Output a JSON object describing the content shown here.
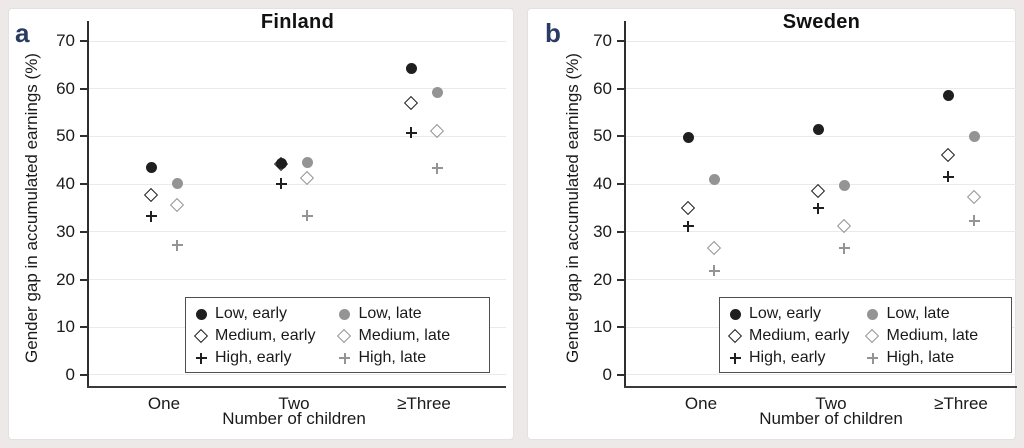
{
  "colors": {
    "early": "#1f1f1f",
    "late": "#949494",
    "panel_label": "#2a3c64",
    "grid": "#eaeaea",
    "axis": "#2e2e2e"
  },
  "legend": {
    "items": [
      {
        "label": "Low, early",
        "marker": "circle",
        "tone": "early"
      },
      {
        "label": "Low, late",
        "marker": "circle",
        "tone": "late"
      },
      {
        "label": "Medium, early",
        "marker": "diamond",
        "tone": "early"
      },
      {
        "label": "Medium, late",
        "marker": "diamond",
        "tone": "late"
      },
      {
        "label": "High, early",
        "marker": "plus",
        "tone": "early"
      },
      {
        "label": "High, late",
        "marker": "plus",
        "tone": "late"
      }
    ]
  },
  "chart_data": [
    {
      "panel_label": "a",
      "title": "Finland",
      "type": "scatter",
      "ylabel": "Gender gap in accumulated earnings (%)",
      "xlabel": "Number of children",
      "ylim": [
        0,
        70
      ],
      "yticks": [
        0,
        10,
        20,
        30,
        40,
        50,
        60,
        70
      ],
      "grid": true,
      "legend_position": "bottom-right",
      "categories": [
        "One",
        "Two",
        "≥Three"
      ],
      "series": [
        {
          "name": "Low, early",
          "marker": "circle",
          "tone": "early",
          "values": [
            43.5,
            44.4,
            64.2
          ]
        },
        {
          "name": "Medium, early",
          "marker": "diamond",
          "tone": "early",
          "values": [
            37.7,
            44.1,
            56.9
          ]
        },
        {
          "name": "High, early",
          "marker": "plus",
          "tone": "early",
          "values": [
            33.3,
            40.1,
            50.8
          ]
        },
        {
          "name": "Low, late",
          "marker": "circle",
          "tone": "late",
          "values": [
            40.1,
            44.6,
            59.2
          ]
        },
        {
          "name": "Medium, late",
          "marker": "diamond",
          "tone": "late",
          "values": [
            35.5,
            41.2,
            51.0
          ]
        },
        {
          "name": "High, late",
          "marker": "plus",
          "tone": "late",
          "values": [
            27.2,
            33.4,
            43.3
          ]
        }
      ]
    },
    {
      "panel_label": "b",
      "title": "Sweden",
      "type": "scatter",
      "ylabel": "Gender gap in accumulated earnings (%)",
      "xlabel": "Number of children",
      "ylim": [
        0,
        70
      ],
      "yticks": [
        0,
        10,
        20,
        30,
        40,
        50,
        60,
        70
      ],
      "grid": true,
      "legend_position": "bottom-right",
      "categories": [
        "One",
        "Two",
        "≥Three"
      ],
      "series": [
        {
          "name": "Low, early",
          "marker": "circle",
          "tone": "early",
          "values": [
            49.8,
            51.4,
            58.5
          ]
        },
        {
          "name": "Medium, early",
          "marker": "diamond",
          "tone": "early",
          "values": [
            34.8,
            38.5,
            46.0
          ]
        },
        {
          "name": "High, early",
          "marker": "plus",
          "tone": "early",
          "values": [
            31.2,
            34.9,
            41.5
          ]
        },
        {
          "name": "Low, late",
          "marker": "circle",
          "tone": "late",
          "values": [
            41.0,
            39.8,
            49.9
          ]
        },
        {
          "name": "Medium, late",
          "marker": "diamond",
          "tone": "late",
          "values": [
            26.6,
            31.2,
            37.1
          ]
        },
        {
          "name": "High, late",
          "marker": "plus",
          "tone": "late",
          "values": [
            21.8,
            26.6,
            32.3
          ]
        }
      ]
    }
  ]
}
